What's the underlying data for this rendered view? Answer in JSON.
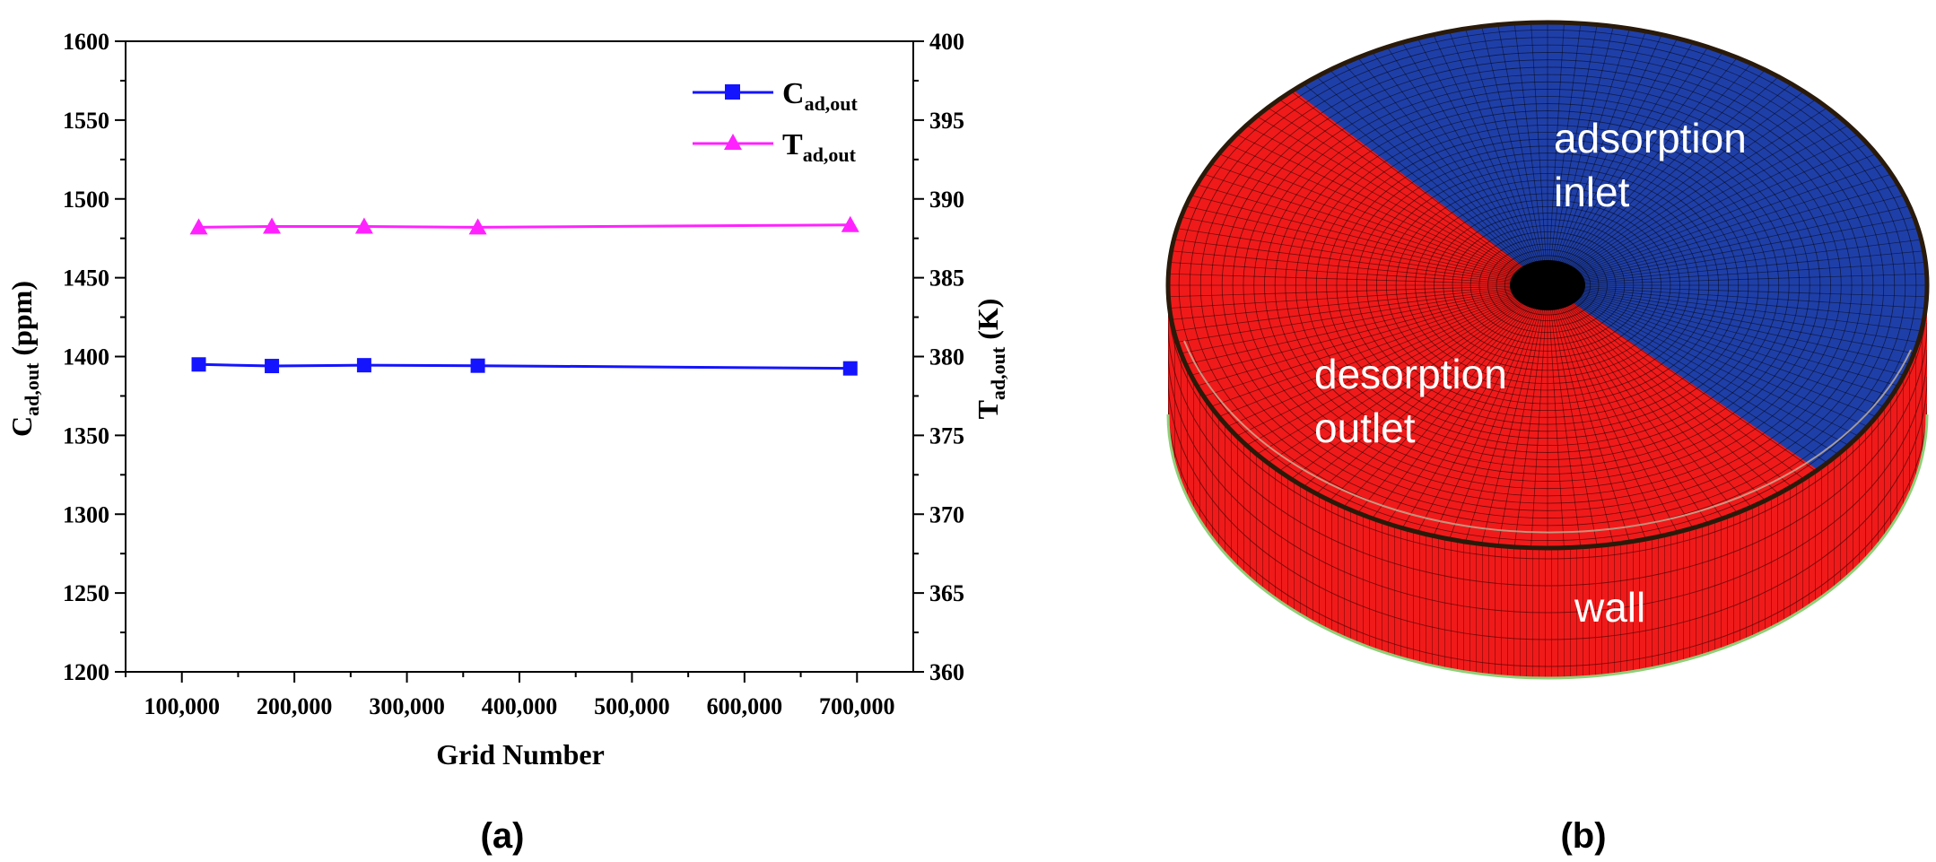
{
  "chart_data": {
    "type": "line",
    "panel_label": "(a)",
    "xlabel": "Grid Number",
    "x": [
      115000,
      180000,
      262000,
      363000,
      694000
    ],
    "xlim": [
      50000,
      750000
    ],
    "xticks": [
      100000,
      200000,
      300000,
      400000,
      500000,
      600000,
      700000
    ],
    "xtick_labels": [
      "100,000",
      "200,000",
      "300,000",
      "400,000",
      "500,000",
      "600,000",
      "700,000"
    ],
    "ylabel_left": {
      "main": "C",
      "sub": "ad,out",
      "unit": " (ppm)"
    },
    "ylim_left": [
      1200,
      1600
    ],
    "yticks_left": [
      1200,
      1250,
      1300,
      1350,
      1400,
      1450,
      1500,
      1550,
      1600
    ],
    "ylabel_right": {
      "main": "T",
      "sub": "ad,out",
      "unit": " (K)"
    },
    "ylim_right": [
      360,
      400
    ],
    "yticks_right": [
      360,
      365,
      370,
      375,
      380,
      385,
      390,
      395,
      400
    ],
    "series": [
      {
        "name_main": "C",
        "name_sub": "ad,out",
        "axis": "left",
        "marker": "square",
        "color": "#1414ff",
        "values": [
          1395,
          1394,
          1394.5,
          1394.2,
          1392.5
        ]
      },
      {
        "name_main": "T",
        "name_sub": "ad,out",
        "axis": "right",
        "marker": "triangle",
        "color": "#ff22ff",
        "values": [
          388.2,
          388.25,
          388.25,
          388.2,
          388.35
        ]
      }
    ],
    "legend_position": "top-right"
  },
  "model_panel": {
    "panel_label": "(b)",
    "labels": {
      "adsorption_line1": "adsorption",
      "adsorption_line2": "inlet",
      "desorption_line1": "desorption",
      "desorption_line2": "outlet",
      "wall": "wall"
    },
    "colors": {
      "adsorption": "#1f3fa8",
      "desorption": "#f01a1a",
      "mesh": "#000000"
    }
  }
}
